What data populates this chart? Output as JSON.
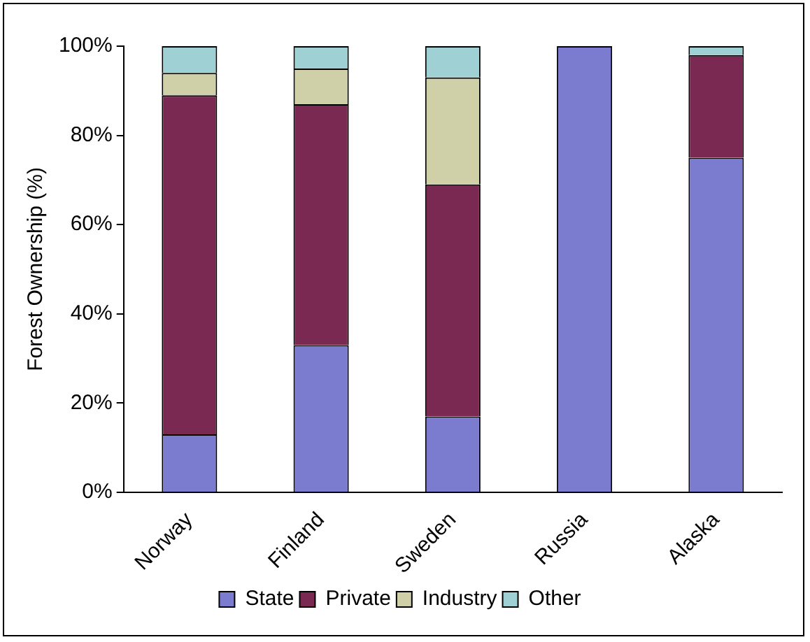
{
  "chart_data": {
    "type": "bar",
    "stacked": true,
    "ylabel": "Forest Ownership (%)",
    "categories": [
      "Norway",
      "Finland",
      "Sweden",
      "Russia",
      "Alaska"
    ],
    "series": [
      {
        "name": "State",
        "color": "#7b7bd0",
        "values": [
          13,
          33,
          17,
          100,
          75
        ]
      },
      {
        "name": "Private",
        "color": "#7a2a52",
        "values": [
          76,
          54,
          52,
          0,
          23
        ]
      },
      {
        "name": "Industry",
        "color": "#d0d0a8",
        "values": [
          5,
          8,
          24,
          0,
          0
        ]
      },
      {
        "name": "Other",
        "color": "#9fd0d4",
        "values": [
          6,
          5,
          7,
          0,
          2
        ]
      }
    ],
    "ylim": [
      0,
      100
    ],
    "yticks": [
      {
        "value": 0,
        "label": "0%"
      },
      {
        "value": 20,
        "label": "20%"
      },
      {
        "value": 40,
        "label": "40%"
      },
      {
        "value": 60,
        "label": "60%"
      },
      {
        "value": 80,
        "label": "80%"
      },
      {
        "value": 100,
        "label": "100%"
      }
    ],
    "grid": false,
    "legend": "bottom"
  }
}
